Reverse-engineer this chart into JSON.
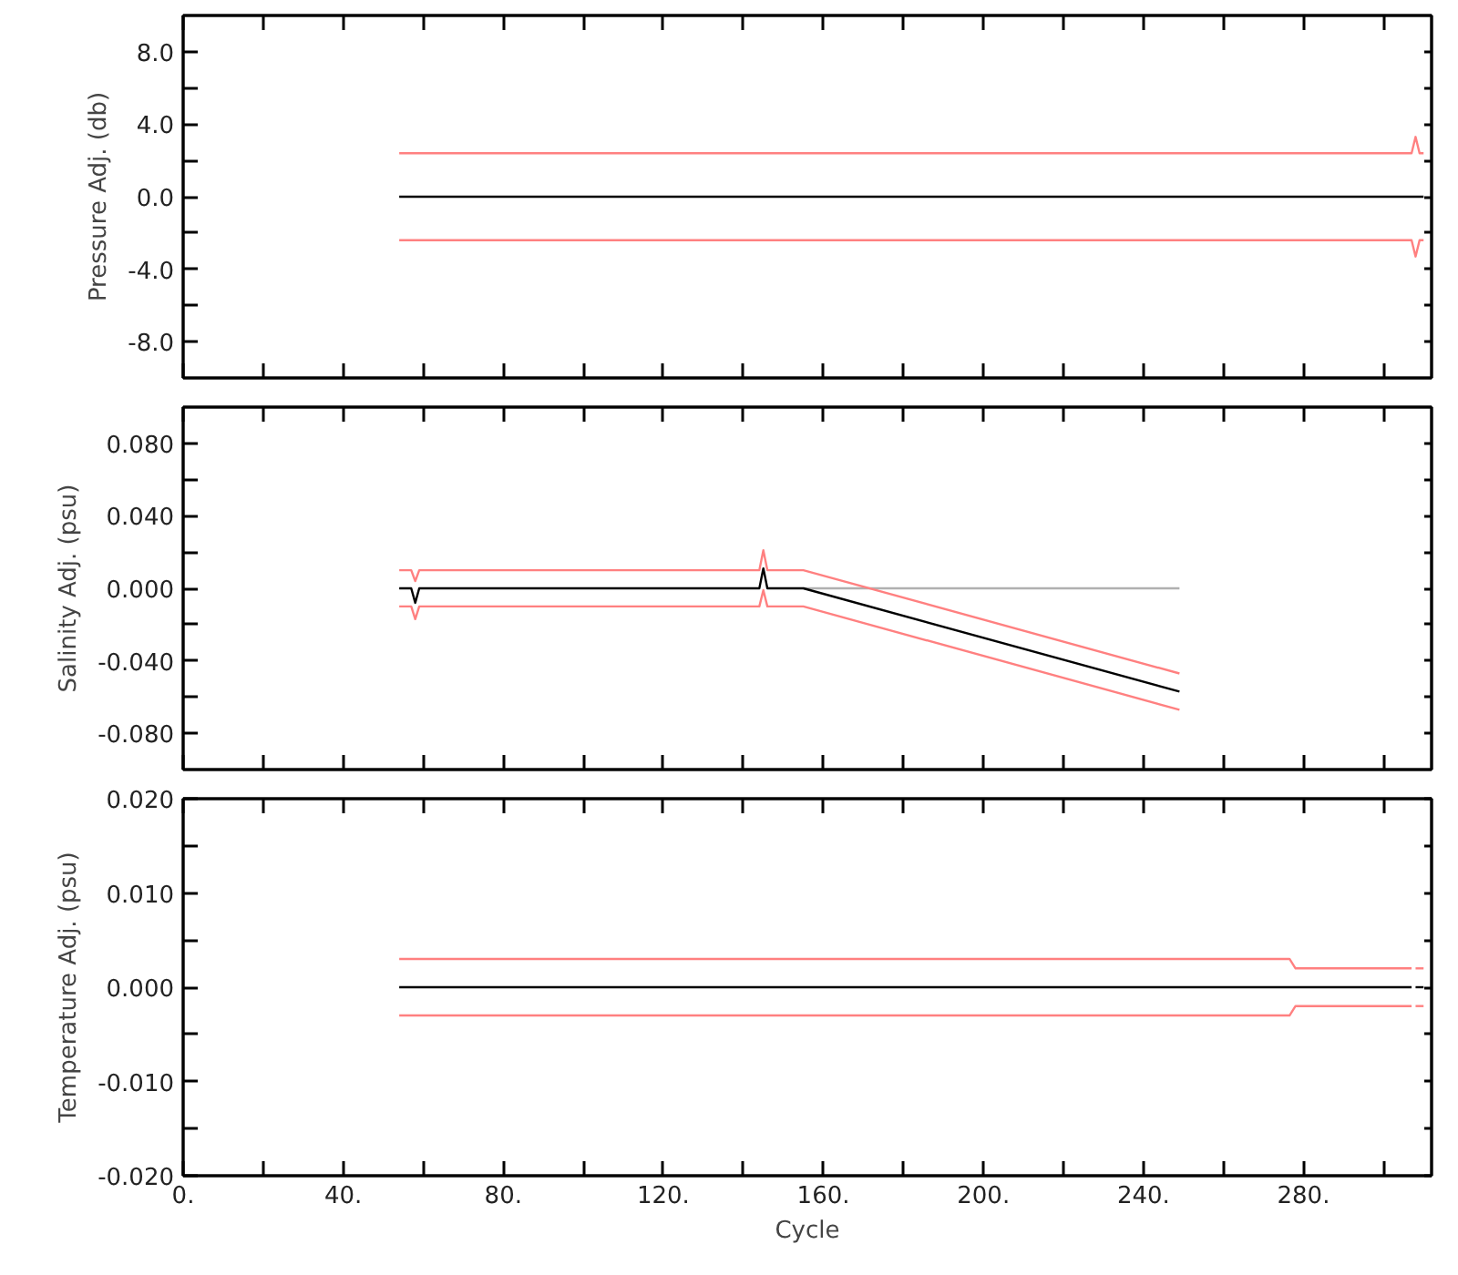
{
  "chart_data": [
    {
      "type": "line",
      "ylabel": "Pressure Adj. (db)",
      "xlim": [
        0,
        312
      ],
      "ylim": [
        -10,
        10
      ],
      "xticks": [
        0,
        {
          "value": 20,
          "label": null
        },
        {
          "value": 40,
          "label": null
        },
        {
          "value": 60,
          "label": null
        },
        {
          "value": 80,
          "label": null
        },
        {
          "value": 100,
          "label": null
        },
        {
          "value": 120,
          "label": null
        },
        {
          "value": 140,
          "label": null
        },
        {
          "value": 160,
          "label": null
        },
        {
          "value": 180,
          "label": null
        },
        {
          "value": 200,
          "label": null
        },
        {
          "value": 220,
          "label": null
        },
        {
          "value": 240,
          "label": null
        },
        {
          "value": 260,
          "label": null
        },
        {
          "value": 280,
          "label": null
        },
        {
          "value": 300,
          "label": null
        }
      ],
      "yticks": [
        {
          "value": -8,
          "label": "-8.0"
        },
        {
          "value": -6,
          "label": null
        },
        {
          "value": -4,
          "label": "-4.0"
        },
        {
          "value": -2,
          "label": null
        },
        {
          "value": 0,
          "label": "0.0"
        },
        {
          "value": 2,
          "label": null
        },
        {
          "value": 4,
          "label": "4.0"
        },
        {
          "value": 6,
          "label": null
        },
        {
          "value": 8,
          "label": "8.0"
        }
      ],
      "tick_labels": "y",
      "grid": false,
      "series": [
        {
          "color": "#ff8080",
          "x": [
            54,
            307,
            308,
            309,
            310
          ],
          "values": [
            2.4,
            2.4,
            3.3,
            2.4,
            2.4
          ]
        },
        {
          "color": "#ff8080",
          "x": [
            54,
            307,
            308,
            309,
            310
          ],
          "values": [
            -2.4,
            -2.4,
            -3.3,
            -2.4,
            -2.4
          ]
        },
        {
          "color": "#000000",
          "x": [
            54,
            310
          ],
          "values": [
            0,
            0
          ]
        }
      ]
    },
    {
      "type": "line",
      "ylabel": "Salinity Adj. (psu)",
      "xlim": [
        0,
        312
      ],
      "ylim": [
        -0.1,
        0.1
      ],
      "xticks": [
        {
          "value": 0,
          "label": null
        },
        {
          "value": 20,
          "label": null
        },
        {
          "value": 40,
          "label": null
        },
        {
          "value": 60,
          "label": null
        },
        {
          "value": 80,
          "label": null
        },
        {
          "value": 100,
          "label": null
        },
        {
          "value": 120,
          "label": null
        },
        {
          "value": 140,
          "label": null
        },
        {
          "value": 160,
          "label": null
        },
        {
          "value": 180,
          "label": null
        },
        {
          "value": 200,
          "label": null
        },
        {
          "value": 220,
          "label": null
        },
        {
          "value": 240,
          "label": null
        },
        {
          "value": 260,
          "label": null
        },
        {
          "value": 280,
          "label": null
        },
        {
          "value": 300,
          "label": null
        }
      ],
      "yticks": [
        {
          "value": -0.08,
          "label": "-0.080"
        },
        {
          "value": -0.06,
          "label": null
        },
        {
          "value": -0.04,
          "label": "-0.040"
        },
        {
          "value": -0.02,
          "label": null
        },
        {
          "value": 0,
          "label": "0.000"
        },
        {
          "value": 0.02,
          "label": null
        },
        {
          "value": 0.04,
          "label": "0.040"
        },
        {
          "value": 0.06,
          "label": null
        },
        {
          "value": 0.08,
          "label": "0.080"
        }
      ],
      "tick_labels": "y",
      "grid": false,
      "series": [
        {
          "color": "#b0b0b0",
          "x": [
            155,
            249
          ],
          "values": [
            0,
            0
          ]
        },
        {
          "color": "#ff8080",
          "x": [
            54,
            57,
            58,
            59,
            144,
            145,
            146,
            155,
            249
          ],
          "values": [
            0.01,
            0.01,
            0.004,
            0.01,
            0.01,
            0.021,
            0.01,
            0.01,
            -0.047
          ]
        },
        {
          "color": "#ff8080",
          "x": [
            54,
            57,
            58,
            59,
            144,
            145,
            146,
            155,
            249
          ],
          "values": [
            -0.01,
            -0.01,
            -0.017,
            -0.01,
            -0.01,
            -0.001,
            -0.01,
            -0.01,
            -0.067
          ]
        },
        {
          "color": "#000000",
          "x": [
            54,
            57,
            58,
            59,
            144,
            145,
            146,
            155,
            249
          ],
          "values": [
            0,
            0,
            -0.008,
            0,
            0,
            0.011,
            0,
            0,
            -0.057
          ]
        }
      ]
    },
    {
      "type": "line",
      "xlabel": "Cycle",
      "ylabel": "Temperature Adj. (psu)",
      "xlim": [
        0,
        312
      ],
      "ylim": [
        -0.02,
        0.02
      ],
      "xticks": [
        {
          "value": 0,
          "label": "0."
        },
        {
          "value": 20,
          "label": null
        },
        {
          "value": 40,
          "label": "40."
        },
        {
          "value": 60,
          "label": null
        },
        {
          "value": 80,
          "label": "80."
        },
        {
          "value": 100,
          "label": null
        },
        {
          "value": 120,
          "label": "120."
        },
        {
          "value": 140,
          "label": null
        },
        {
          "value": 160,
          "label": "160."
        },
        {
          "value": 180,
          "label": null
        },
        {
          "value": 200,
          "label": "200."
        },
        {
          "value": 220,
          "label": null
        },
        {
          "value": 240,
          "label": "240."
        },
        {
          "value": 260,
          "label": null
        },
        {
          "value": 280,
          "label": "280."
        },
        {
          "value": 300,
          "label": null
        }
      ],
      "yticks": [
        {
          "value": -0.02,
          "label": "-0.020"
        },
        {
          "value": -0.015,
          "label": null
        },
        {
          "value": -0.01,
          "label": "-0.010"
        },
        {
          "value": -0.005,
          "label": null
        },
        {
          "value": 0,
          "label": "0.000"
        },
        {
          "value": 0.005,
          "label": null
        },
        {
          "value": 0.01,
          "label": "0.010"
        },
        {
          "value": 0.015,
          "label": null
        },
        {
          "value": 0.02,
          "label": "0.020"
        }
      ],
      "grid": false,
      "series": [
        {
          "color": "#ff8080",
          "x": [
            54,
            276.5,
            278,
            307
          ],
          "values": [
            0.003,
            0.003,
            0.002,
            0.002
          ]
        },
        {
          "color": "#ff8080",
          "x": [
            308,
            310
          ],
          "values": [
            0.002,
            0.002
          ]
        },
        {
          "color": "#ff8080",
          "x": [
            54,
            276.5,
            278,
            307
          ],
          "values": [
            -0.003,
            -0.003,
            -0.002,
            -0.002
          ]
        },
        {
          "color": "#ff8080",
          "x": [
            308,
            310
          ],
          "values": [
            -0.002,
            -0.002
          ]
        },
        {
          "color": "#000000",
          "x": [
            54,
            307
          ],
          "values": [
            0,
            0
          ]
        },
        {
          "color": "#000000",
          "x": [
            308,
            310
          ],
          "values": [
            0,
            0
          ]
        }
      ]
    }
  ]
}
